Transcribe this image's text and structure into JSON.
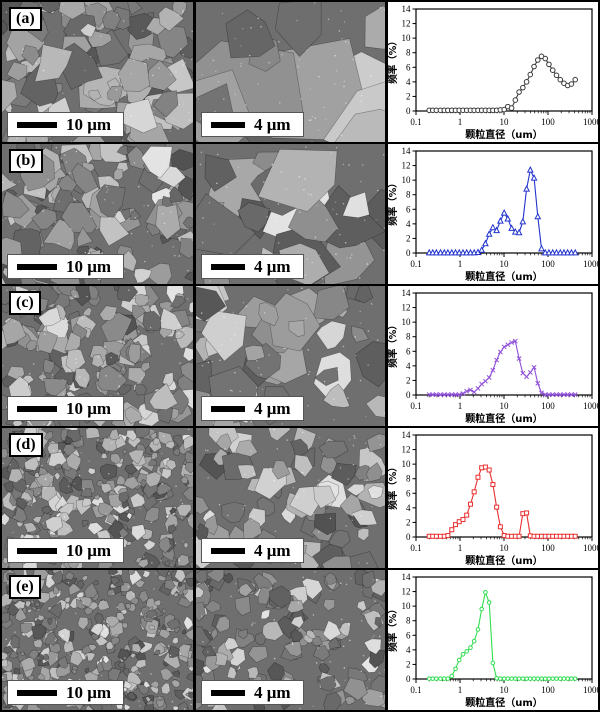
{
  "figure": {
    "border_color": "#000000",
    "rows": [
      {
        "label": "(a)",
        "scale_left": "10 μm",
        "scale_right": "4 μm"
      },
      {
        "label": "(b)",
        "scale_left": "10 μm",
        "scale_right": "4 μm"
      },
      {
        "label": "(c)",
        "scale_left": "10 μm",
        "scale_right": "4 μm"
      },
      {
        "label": "(d)",
        "scale_left": "10 μm",
        "scale_right": "4 μm"
      },
      {
        "label": "(e)",
        "scale_left": "10 μm",
        "scale_right": "4 μm"
      }
    ]
  },
  "chart_data": [
    {
      "type": "line",
      "panel": "(a)",
      "marker": "circle",
      "color": "#3a3a3a",
      "xlabel": "颗粒直径（um）",
      "ylabel": "频率（%）",
      "xscale": "log",
      "xlim": [
        0.1,
        1000
      ],
      "ylim": [
        0,
        14
      ],
      "xticks": [
        "0.1",
        "1",
        "10",
        "100",
        "1000"
      ],
      "yticks": [
        0,
        2,
        4,
        6,
        8,
        10,
        12,
        14
      ],
      "x": [
        0.2,
        0.24,
        0.29,
        0.36,
        0.44,
        0.53,
        0.65,
        0.79,
        0.96,
        1.17,
        1.42,
        1.73,
        2.1,
        2.56,
        3.11,
        3.78,
        4.6,
        5.59,
        6.8,
        8.27,
        10.1,
        12.2,
        14.9,
        18.1,
        22.0,
        26.8,
        32.6,
        39.6,
        48.2,
        58.6,
        71.2,
        86.6,
        105,
        128,
        156,
        190,
        231,
        280,
        341,
        415
      ],
      "y": [
        0.1,
        0.1,
        0.1,
        0.1,
        0.1,
        0.1,
        0.1,
        0.1,
        0.1,
        0.1,
        0.1,
        0.1,
        0.1,
        0.1,
        0.1,
        0.1,
        0.1,
        0.1,
        0.1,
        0.15,
        0.2,
        0.6,
        0.4,
        1.5,
        2.6,
        3.2,
        4.0,
        5.0,
        6.1,
        7.0,
        7.5,
        7.2,
        6.4,
        5.6,
        4.9,
        4.3,
        3.8,
        3.5,
        3.7,
        4.3
      ]
    },
    {
      "type": "line",
      "panel": "(b)",
      "marker": "triangle",
      "color": "#2233cc",
      "xlabel": "颗粒直径（um）",
      "ylabel": "频率（%）",
      "xscale": "log",
      "xlim": [
        0.1,
        1000
      ],
      "ylim": [
        0,
        14
      ],
      "xticks": [
        "0.1",
        "1",
        "10",
        "100",
        "1000"
      ],
      "yticks": [
        0,
        2,
        4,
        6,
        8,
        10,
        12,
        14
      ],
      "x": [
        0.2,
        0.24,
        0.29,
        0.36,
        0.44,
        0.53,
        0.65,
        0.79,
        0.96,
        1.17,
        1.42,
        1.73,
        2.1,
        2.56,
        3.11,
        3.78,
        4.6,
        5.59,
        6.8,
        8.27,
        10.1,
        12.2,
        14.9,
        18.1,
        22.0,
        26.8,
        32.6,
        39.6,
        48.2,
        58.6,
        71.2,
        86.6,
        105,
        128,
        156,
        190,
        231,
        280,
        341,
        415
      ],
      "y": [
        0.05,
        0.05,
        0.05,
        0.05,
        0.05,
        0.05,
        0.05,
        0.05,
        0.05,
        0.05,
        0.05,
        0.05,
        0.05,
        0.1,
        0.4,
        1.3,
        2.6,
        3.5,
        3.1,
        4.4,
        5.5,
        4.7,
        3.4,
        2.9,
        2.8,
        4.3,
        8.8,
        11.4,
        10.3,
        5.0,
        0.6,
        0.05,
        0.05,
        0.05,
        0.05,
        0.05,
        0.05,
        0.05,
        0.05,
        0.05
      ]
    },
    {
      "type": "line",
      "panel": "(c)",
      "marker": "x",
      "color": "#9050d8",
      "xlabel": "颗粒直径（um）",
      "ylabel": "频率（%）",
      "xscale": "log",
      "xlim": [
        0.1,
        1000
      ],
      "ylim": [
        0,
        14
      ],
      "xticks": [
        "0.1",
        "1",
        "10",
        "100",
        "1000"
      ],
      "yticks": [
        0,
        2,
        4,
        6,
        8,
        10,
        12,
        14
      ],
      "x": [
        0.2,
        0.24,
        0.29,
        0.36,
        0.44,
        0.53,
        0.65,
        0.79,
        0.96,
        1.17,
        1.42,
        1.73,
        2.1,
        2.56,
        3.11,
        3.78,
        4.6,
        5.59,
        6.8,
        8.27,
        10.1,
        12.2,
        14.9,
        18.1,
        22.0,
        26.8,
        32.6,
        39.6,
        48.2,
        58.6,
        71.2,
        86.6,
        105,
        128,
        156,
        190,
        231,
        280,
        341,
        415
      ],
      "y": [
        0.05,
        0.05,
        0.05,
        0.05,
        0.05,
        0.05,
        0.05,
        0.05,
        0.05,
        0.2,
        0.5,
        0.7,
        0.4,
        0.9,
        1.5,
        1.9,
        2.4,
        3.4,
        4.8,
        5.9,
        6.6,
        6.9,
        7.2,
        7.4,
        5.0,
        3.0,
        2.5,
        3.1,
        3.8,
        1.6,
        0.3,
        0.05,
        0.05,
        0.05,
        0.05,
        0.05,
        0.05,
        0.05,
        0.05,
        0.05
      ]
    },
    {
      "type": "line",
      "panel": "(d)",
      "marker": "square",
      "color": "#e83030",
      "xlabel": "颗粒直径（um）",
      "ylabel": "频率（%）",
      "xscale": "log",
      "xlim": [
        0.1,
        1000
      ],
      "ylim": [
        0,
        14
      ],
      "xticks": [
        "0.1",
        "1",
        "10",
        "100",
        "1000"
      ],
      "yticks": [
        0,
        2,
        4,
        6,
        8,
        10,
        12,
        14
      ],
      "x": [
        0.2,
        0.24,
        0.29,
        0.36,
        0.44,
        0.53,
        0.65,
        0.79,
        0.96,
        1.17,
        1.42,
        1.73,
        2.1,
        2.56,
        3.11,
        3.78,
        4.6,
        5.59,
        6.8,
        8.27,
        10.1,
        12.2,
        14.9,
        18.1,
        22.0,
        26.8,
        32.6,
        39.6,
        48.2,
        58.6,
        71.2,
        86.6,
        105,
        128,
        156,
        190,
        231,
        280,
        341,
        415
      ],
      "y": [
        0.1,
        0.1,
        0.1,
        0.1,
        0.1,
        0.2,
        1.0,
        1.7,
        2.1,
        2.4,
        3.0,
        4.5,
        6.2,
        8.2,
        9.5,
        9.6,
        9.2,
        7.2,
        4.1,
        1.4,
        0.2,
        0.1,
        0.1,
        0.1,
        0.1,
        3.2,
        3.3,
        0.15,
        0.1,
        0.1,
        0.1,
        0.1,
        0.1,
        0.1,
        0.1,
        0.1,
        0.1,
        0.1,
        0.1,
        0.1
      ]
    },
    {
      "type": "line",
      "panel": "(e)",
      "marker": "circle-small",
      "color": "#30dd50",
      "xlabel": "颗粒直径（um）",
      "ylabel": "频率（%）",
      "xscale": "log",
      "xlim": [
        0.1,
        1000
      ],
      "ylim": [
        0,
        14
      ],
      "xticks": [
        "0.1",
        "1",
        "10",
        "100",
        "1000"
      ],
      "yticks": [
        0,
        2,
        4,
        6,
        8,
        10,
        12,
        14
      ],
      "x": [
        0.2,
        0.24,
        0.29,
        0.36,
        0.44,
        0.53,
        0.65,
        0.79,
        0.96,
        1.17,
        1.42,
        1.73,
        2.1,
        2.56,
        3.11,
        3.78,
        4.6,
        5.59,
        6.8,
        8.27,
        10.1,
        12.2,
        14.9,
        18.1,
        22.0,
        26.8,
        32.6,
        39.6,
        48.2,
        58.6,
        71.2,
        86.6,
        105,
        128,
        156,
        190,
        231,
        280,
        341,
        415
      ],
      "y": [
        0.05,
        0.05,
        0.05,
        0.05,
        0.05,
        0.05,
        0.4,
        1.4,
        2.6,
        3.4,
        3.8,
        4.3,
        5.2,
        6.8,
        9.6,
        11.9,
        10.5,
        2.2,
        0.1,
        0.05,
        0.05,
        0.05,
        0.05,
        0.05,
        0.05,
        0.05,
        0.05,
        0.05,
        0.05,
        0.05,
        0.05,
        0.05,
        0.05,
        0.05,
        0.05,
        0.05,
        0.05,
        0.05,
        0.05,
        0.05
      ]
    }
  ]
}
